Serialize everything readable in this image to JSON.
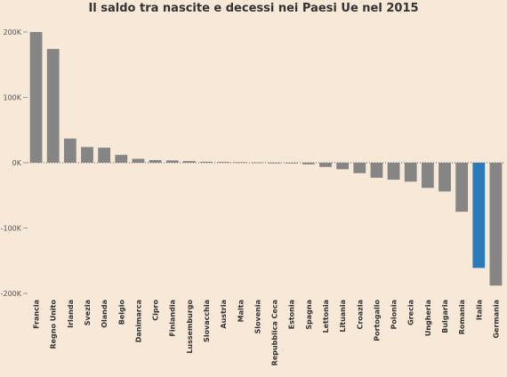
{
  "chart_data": {
    "type": "bar",
    "title": "Il saldo tra nascite e decessi nei Paesi Ue nel 2015",
    "xlabel": "",
    "ylabel": "",
    "ylim": [
      -200000,
      200000
    ],
    "yticks": [
      {
        "value": 200000,
        "label": "200K"
      },
      {
        "value": 100000,
        "label": "100K"
      },
      {
        "value": 0,
        "label": "0K"
      },
      {
        "value": -100000,
        "label": "-100K"
      },
      {
        "value": -200000,
        "label": "-200K"
      }
    ],
    "categories": [
      "Francia",
      "Regno Unito",
      "Irlanda",
      "Svezia",
      "Olanda",
      "Belgio",
      "Danimarca",
      "Cipro",
      "Finlandia",
      "Lussemburgo",
      "Slovacchia",
      "Austria",
      "Malta",
      "Slovenia",
      "Repubblica Ceca",
      "Estonia",
      "Spagna",
      "Lettonia",
      "Lituania",
      "Croazia",
      "Portogallo",
      "Polonia",
      "Grecia",
      "Ungheria",
      "Bulgaria",
      "Romania",
      "Italia",
      "Germania"
    ],
    "values": [
      200000,
      174000,
      37000,
      24000,
      23000,
      12000,
      6000,
      4000,
      3500,
      2500,
      1500,
      1200,
      800,
      500,
      -500,
      -1000,
      -2500,
      -6500,
      -10000,
      -16000,
      -23000,
      -26000,
      -29000,
      -38500,
      -44000,
      -75000,
      -161000,
      -188000
    ],
    "highlight": {
      "category": "Italia",
      "color": "#2b7bba"
    },
    "bar_color": "#858585",
    "grid": false,
    "legend": "none"
  }
}
